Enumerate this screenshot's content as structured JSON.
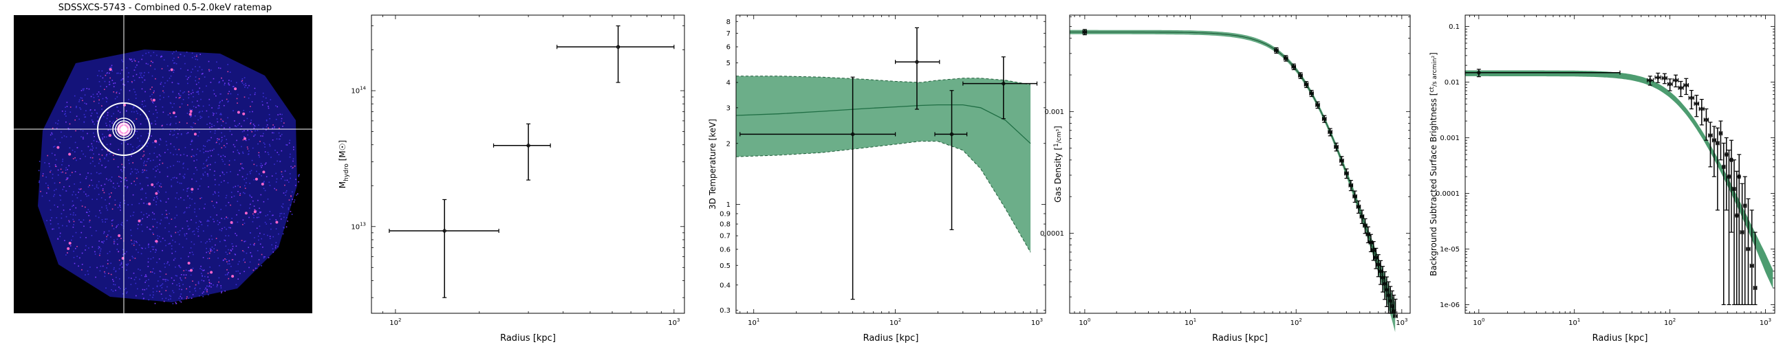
{
  "ratemap": {
    "title": "SDSSXCS-5743 - Combined 0.5-2.0keV ratemap"
  },
  "chart_data": [
    {
      "type": "scatter",
      "name": "hydrostatic-mass-profile",
      "xlabel": "Radius [kpc]",
      "ylabel": "M_hydro [M☉]",
      "ylabel_main": "M",
      "ylabel_sub": "hydro",
      "ylabel_unit": "[M☉]",
      "xscale": "log",
      "yscale": "log",
      "xlim": [
        82,
        1090
      ],
      "ylim": [
        2300000000000.0,
        360000000000000.0
      ],
      "xticks": [
        {
          "v": 100,
          "b": "10",
          "e": "2"
        },
        {
          "v": 1000,
          "b": "10",
          "e": "3"
        }
      ],
      "yticks": [
        {
          "v": 10000000000000.0,
          "b": "10",
          "e": "13"
        },
        {
          "v": 100000000000000.0,
          "b": "10",
          "e": "14"
        }
      ],
      "points": [
        {
          "x": 150,
          "xlo": 95,
          "xhi": 235,
          "y": 9300000000000.0,
          "ylo": 3000000000000.0,
          "yhi": 15800000000000.0
        },
        {
          "x": 300,
          "xlo": 225,
          "xhi": 360,
          "y": 39500000000000.0,
          "ylo": 22000000000000.0,
          "yhi": 57000000000000.0
        },
        {
          "x": 630,
          "xlo": 380,
          "xhi": 1000,
          "y": 210000000000000.0,
          "ylo": 115000000000000.0,
          "yhi": 300000000000000.0
        }
      ]
    },
    {
      "type": "scatter",
      "name": "3d-temperature-profile",
      "xlabel": "Radius [kpc]",
      "ylabel": "3D Temperature [keV]",
      "xscale": "log",
      "yscale": "log",
      "xlim": [
        7.5,
        1150
      ],
      "ylim": [
        0.29,
        8.6
      ],
      "xticks": [
        {
          "v": 10,
          "b": "10",
          "e": "1"
        },
        {
          "v": 100,
          "b": "10",
          "e": "2"
        },
        {
          "v": 1000,
          "b": "10",
          "e": "3"
        }
      ],
      "yticks": [
        {
          "v": 0.3,
          "l": "0.3"
        },
        {
          "v": 0.4,
          "l": "0.4"
        },
        {
          "v": 0.5,
          "l": "0.5"
        },
        {
          "v": 0.6,
          "l": "0.6"
        },
        {
          "v": 0.7,
          "l": "0.7"
        },
        {
          "v": 0.8,
          "l": "0.8"
        },
        {
          "v": 0.9,
          "l": "0.9"
        },
        {
          "v": 1,
          "l": "1"
        },
        {
          "v": 2,
          "l": "2"
        },
        {
          "v": 3,
          "l": "3"
        },
        {
          "v": 4,
          "l": "4"
        },
        {
          "v": 5,
          "l": "5"
        },
        {
          "v": 6,
          "l": "6"
        },
        {
          "v": 7,
          "l": "7"
        },
        {
          "v": 8,
          "l": "8"
        }
      ],
      "band": {
        "color": "#2e8b57",
        "x": [
          7.5,
          15,
          30,
          60,
          100,
          150,
          200,
          300,
          400,
          600,
          900
        ],
        "lower": [
          1.72,
          1.75,
          1.8,
          1.9,
          1.98,
          2.05,
          2.05,
          1.85,
          1.5,
          0.95,
          0.58
        ],
        "median": [
          2.75,
          2.8,
          2.88,
          2.97,
          3.03,
          3.08,
          3.1,
          3.1,
          3.0,
          2.6,
          2.0
        ],
        "upper": [
          4.3,
          4.3,
          4.25,
          4.15,
          4.05,
          4.0,
          4.1,
          4.2,
          4.2,
          4.1,
          3.9
        ]
      },
      "points": [
        {
          "x": 50,
          "xlo": 8,
          "xhi": 100,
          "y": 2.22,
          "ylo": 0.34,
          "yhi": 4.25
        },
        {
          "x": 142,
          "xlo": 100,
          "xhi": 205,
          "y": 5.05,
          "ylo": 2.95,
          "yhi": 7.45
        },
        {
          "x": 250,
          "xlo": 190,
          "xhi": 320,
          "y": 2.22,
          "ylo": 0.75,
          "yhi": 3.65
        },
        {
          "x": 580,
          "xlo": 300,
          "xhi": 1000,
          "y": 3.95,
          "ylo": 2.65,
          "yhi": 5.35
        }
      ]
    },
    {
      "type": "line",
      "name": "gas-density-profile",
      "xlabel": "Radius [kpc]",
      "ylabel": "Gas Density [1/cm³]",
      "ylabel_text": "Gas Density",
      "ylabel_frac_num": "1",
      "ylabel_frac_den": "cm³",
      "xscale": "log",
      "yscale": "log",
      "xlim": [
        0.72,
        1200
      ],
      "ylim": [
        2.2e-05,
        0.0062
      ],
      "xticks": [
        {
          "v": 1,
          "b": "10",
          "e": "0"
        },
        {
          "v": 10,
          "b": "10",
          "e": "1"
        },
        {
          "v": 100,
          "b": "10",
          "e": "2"
        },
        {
          "v": 1000,
          "b": "10",
          "e": "3"
        }
      ],
      "yticks": [
        {
          "v": 0.0001,
          "l": "0.0001"
        },
        {
          "v": 0.001,
          "l": "0.001"
        }
      ],
      "model": {
        "n0": 0.0045,
        "rc": 120,
        "beta": 0.9,
        "rmax": 900,
        "color": "#2e8b57"
      },
      "points_x": [
        1,
        65,
        80,
        95,
        110,
        125,
        140,
        160,
        185,
        210,
        240,
        270,
        300,
        330,
        360,
        390,
        420,
        450,
        480,
        510,
        540,
        570,
        600,
        630,
        660,
        690,
        720,
        750,
        780,
        810,
        840,
        870
      ]
    },
    {
      "type": "line",
      "name": "surface-brightness-profile",
      "xlabel": "Radius [kpc]",
      "ylabel": "Background Subtracted Surface Brightness [ct / (s arcmin²)]",
      "ylabel_text": "Background Subtracted Surface Brightness",
      "ylabel_frac_num": "ct",
      "ylabel_frac_den": "s arcmin²",
      "xscale": "log",
      "yscale": "log",
      "xlim": [
        0.72,
        1250
      ],
      "ylim": [
        7e-07,
        0.16
      ],
      "xticks": [
        {
          "v": 1,
          "b": "10",
          "e": "0"
        },
        {
          "v": 10,
          "b": "10",
          "e": "1"
        },
        {
          "v": 100,
          "b": "10",
          "e": "2"
        },
        {
          "v": 1000,
          "b": "10",
          "e": "3"
        }
      ],
      "yticks": [
        {
          "v": 1e-06,
          "l": "1e-06"
        },
        {
          "v": 1e-05,
          "l": "1e-05"
        },
        {
          "v": 0.0001,
          "l": "0.0001"
        },
        {
          "v": 0.001,
          "l": "0.001"
        },
        {
          "v": 0.01,
          "l": "0.01"
        },
        {
          "v": 0.1,
          "l": "0.1"
        }
      ],
      "model": {
        "s0": 0.0145,
        "rc": 130,
        "beta": 0.8,
        "color": "#2e8b57"
      },
      "points": [
        {
          "x": 1,
          "xlo": 0.72,
          "xhi": 30,
          "y": 0.0148,
          "ylo": 0.0125,
          "yhi": 0.017
        },
        {
          "x": 62,
          "xlo": 58,
          "xhi": 67,
          "y": 0.0108,
          "ylo": 0.0088,
          "yhi": 0.0128
        },
        {
          "x": 75,
          "xlo": 70,
          "xhi": 80,
          "y": 0.0121,
          "ylo": 0.0098,
          "yhi": 0.0145
        },
        {
          "x": 88,
          "xlo": 83,
          "xhi": 93,
          "y": 0.0118,
          "ylo": 0.0094,
          "yhi": 0.0142
        },
        {
          "x": 100,
          "xlo": 95,
          "xhi": 106,
          "y": 0.0092,
          "ylo": 0.007,
          "yhi": 0.0114
        },
        {
          "x": 115,
          "xlo": 108,
          "xhi": 122,
          "y": 0.0108,
          "ylo": 0.0082,
          "yhi": 0.0134
        },
        {
          "x": 130,
          "xlo": 123,
          "xhi": 138,
          "y": 0.0079,
          "ylo": 0.0055,
          "yhi": 0.0103
        },
        {
          "x": 148,
          "xlo": 140,
          "xhi": 156,
          "y": 0.0088,
          "ylo": 0.006,
          "yhi": 0.0116
        },
        {
          "x": 168,
          "xlo": 158,
          "xhi": 178,
          "y": 0.0052,
          "ylo": 0.0033,
          "yhi": 0.0071
        },
        {
          "x": 190,
          "xlo": 180,
          "xhi": 200,
          "y": 0.0041,
          "ylo": 0.0024,
          "yhi": 0.0058
        },
        {
          "x": 215,
          "xlo": 203,
          "xhi": 227,
          "y": 0.0033,
          "ylo": 0.0017,
          "yhi": 0.0049
        },
        {
          "x": 240,
          "xlo": 228,
          "xhi": 252,
          "y": 0.0021,
          "ylo": 0.0009,
          "yhi": 0.0033
        },
        {
          "x": 265,
          "xlo": 254,
          "xhi": 277,
          "y": 0.0011,
          "ylo": 0.0003,
          "yhi": 0.0019
        },
        {
          "x": 290,
          "xlo": 279,
          "xhi": 302,
          "y": 0.0009,
          "ylo": 0.0002,
          "yhi": 0.0016
        },
        {
          "x": 315,
          "xlo": 304,
          "xhi": 327,
          "y": 0.0008,
          "ylo": 5e-05,
          "yhi": 0.0015
        },
        {
          "x": 340,
          "xlo": 329,
          "xhi": 352,
          "y": 0.0012,
          "ylo": 0.0004,
          "yhi": 0.002
        },
        {
          "x": 365,
          "xlo": 354,
          "xhi": 377,
          "y": 0.0003,
          "ylo": 1e-06,
          "yhi": 0.0008
        },
        {
          "x": 390,
          "xlo": 379,
          "xhi": 402,
          "y": 0.0005,
          "ylo": 5e-05,
          "yhi": 0.001
        },
        {
          "x": 415,
          "xlo": 404,
          "xhi": 427,
          "y": 0.0002,
          "ylo": 1e-06,
          "yhi": 0.0006
        },
        {
          "x": 440,
          "xlo": 429,
          "xhi": 452,
          "y": 0.0004,
          "ylo": 2e-05,
          "yhi": 0.0009
        },
        {
          "x": 470,
          "xlo": 455,
          "xhi": 485,
          "y": 0.00012,
          "ylo": 1e-06,
          "yhi": 0.0004
        },
        {
          "x": 500,
          "xlo": 487,
          "xhi": 515,
          "y": 4e-05,
          "ylo": 1e-06,
          "yhi": 0.00025
        },
        {
          "x": 530,
          "xlo": 517,
          "xhi": 545,
          "y": 0.0002,
          "ylo": 1e-06,
          "yhi": 0.0005
        },
        {
          "x": 570,
          "xlo": 548,
          "xhi": 590,
          "y": 2e-05,
          "ylo": 1e-06,
          "yhi": 0.00015
        },
        {
          "x": 610,
          "xlo": 592,
          "xhi": 630,
          "y": 6e-05,
          "ylo": 1e-06,
          "yhi": 0.0002
        },
        {
          "x": 660,
          "xlo": 632,
          "xhi": 690,
          "y": 1e-05,
          "ylo": 1e-06,
          "yhi": 8e-05
        },
        {
          "x": 720,
          "xlo": 692,
          "xhi": 750,
          "y": 5e-06,
          "ylo": 1e-06,
          "yhi": 5e-05
        },
        {
          "x": 780,
          "xlo": 752,
          "xhi": 810,
          "y": 2e-06,
          "ylo": 1e-06,
          "yhi": 2e-05
        }
      ]
    }
  ]
}
